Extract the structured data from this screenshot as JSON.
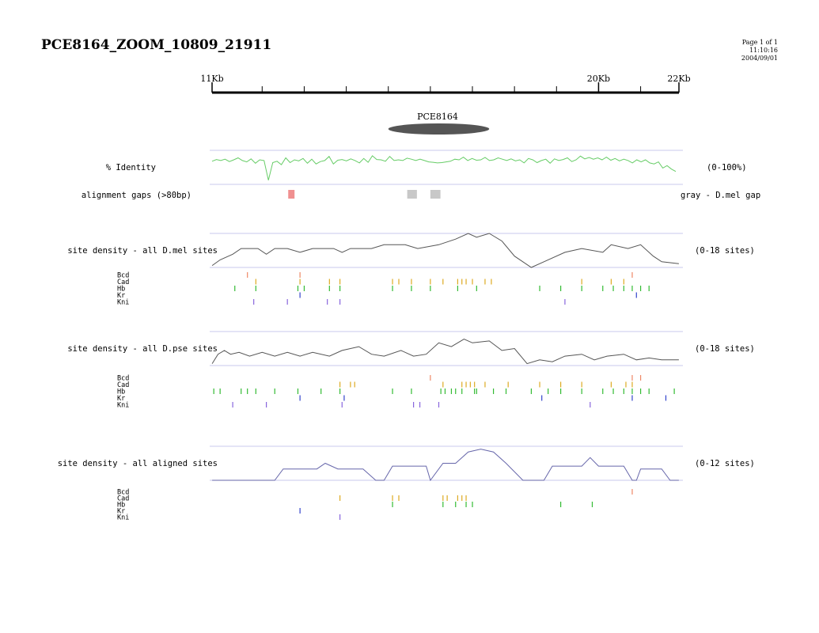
{
  "header": {
    "title": "PCE8164_ZOOM_10809_21911",
    "page": "Page 1 of 1",
    "time": "11:10:16",
    "date": "2004/09/01"
  },
  "ruler": {
    "range_kb": [
      10.809,
      21.911
    ],
    "labels": [
      {
        "text": "11Kb",
        "value": 10.809
      },
      {
        "text": "20Kb",
        "value": 20.0
      },
      {
        "text": "22Kb",
        "value": 21.911
      }
    ],
    "tick_values": [
      10.809,
      12.0,
      13.0,
      14.0,
      15.0,
      16.0,
      17.0,
      18.0,
      19.0,
      20.0,
      21.0,
      21.911
    ]
  },
  "element": {
    "name": "PCE8164",
    "start": 15.0,
    "end": 17.4
  },
  "identity": {
    "label": "% Identity",
    "range_label": "(0-100%)",
    "color": "#66cc66",
    "min": 0,
    "max": 100,
    "values": [
      68,
      73,
      70,
      74,
      67,
      72,
      78,
      70,
      66,
      75,
      62,
      72,
      70,
      12,
      64,
      68,
      58,
      78,
      64,
      72,
      69,
      76,
      62,
      74,
      60,
      67,
      70,
      82,
      60,
      71,
      73,
      69,
      75,
      70,
      63,
      76,
      65,
      84,
      73,
      72,
      68,
      82,
      70,
      72,
      70,
      77,
      74,
      70,
      74,
      70,
      66,
      65,
      63,
      64,
      66,
      68,
      74,
      72,
      80,
      70,
      76,
      71,
      72,
      79,
      70,
      72,
      78,
      74,
      70,
      75,
      69,
      72,
      63,
      76,
      72,
      64,
      70,
      74,
      62,
      75,
      70,
      73,
      78,
      67,
      72,
      83,
      75,
      79,
      74,
      78,
      72,
      80,
      71,
      76,
      69,
      74,
      70,
      63,
      72,
      66,
      72,
      63,
      60,
      66,
      48,
      55,
      45,
      38
    ]
  },
  "gaps": {
    "label": "alignment gaps (>80bp)",
    "legend": "gray - D.mel gap",
    "colors": {
      "dmel": "#c8c8c8",
      "dpse": "#f09090"
    },
    "items": [
      {
        "type": "dpse",
        "start": 12.62,
        "end": 12.77
      },
      {
        "type": "dmel",
        "start": 15.45,
        "end": 15.68
      },
      {
        "type": "dmel",
        "start": 16.0,
        "end": 16.24
      }
    ]
  },
  "tracks": [
    {
      "title": "site density - all D.mel sites",
      "range_label": "(0-18 sites)",
      "max": 18,
      "density": [
        [
          10.81,
          1
        ],
        [
          11.0,
          4
        ],
        [
          11.3,
          7
        ],
        [
          11.5,
          10
        ],
        [
          11.9,
          10
        ],
        [
          12.1,
          7
        ],
        [
          12.3,
          10
        ],
        [
          12.6,
          10
        ],
        [
          12.9,
          8
        ],
        [
          13.2,
          10
        ],
        [
          13.7,
          10
        ],
        [
          13.9,
          8
        ],
        [
          14.1,
          10
        ],
        [
          14.6,
          10
        ],
        [
          14.9,
          12
        ],
        [
          15.4,
          12
        ],
        [
          15.7,
          10
        ],
        [
          16.2,
          12
        ],
        [
          16.6,
          15
        ],
        [
          16.9,
          18
        ],
        [
          17.1,
          16
        ],
        [
          17.4,
          18
        ],
        [
          17.7,
          14
        ],
        [
          18.0,
          6
        ],
        [
          18.4,
          0
        ],
        [
          18.7,
          3
        ],
        [
          19.2,
          8
        ],
        [
          19.6,
          10
        ],
        [
          20.1,
          8
        ],
        [
          20.3,
          12
        ],
        [
          20.7,
          10
        ],
        [
          21.0,
          12
        ],
        [
          21.3,
          6
        ],
        [
          21.5,
          3
        ],
        [
          21.91,
          2
        ]
      ],
      "factors": [
        {
          "name": "Bcd",
          "positions": [
            11.65,
            12.9,
            20.8
          ],
          "color": "#ee8866"
        },
        {
          "name": "Cad",
          "positions": [
            11.85,
            12.9,
            13.6,
            13.85,
            15.1,
            15.25,
            15.55,
            16.0,
            16.3,
            16.65,
            16.75,
            16.85,
            17.0,
            17.3,
            17.45,
            19.6,
            20.3,
            20.6
          ],
          "color": "#ddaa22"
        },
        {
          "name": "Hb",
          "positions": [
            11.35,
            11.85,
            12.85,
            13.0,
            13.6,
            13.85,
            15.1,
            15.55,
            16.0,
            16.65,
            17.1,
            18.6,
            19.1,
            19.6,
            20.1,
            20.35,
            20.6,
            20.8,
            21.0,
            21.2
          ],
          "color": "#33bb33"
        },
        {
          "name": "Kr",
          "positions": [
            12.9,
            20.9
          ],
          "color": "#3344cc"
        },
        {
          "name": "Kni",
          "positions": [
            11.8,
            12.6,
            13.55,
            13.85,
            19.2
          ],
          "color": "#8866dd"
        }
      ]
    },
    {
      "title": "site density - all D.pse sites",
      "range_label": "(0-18 sites)",
      "max": 18,
      "density": [
        [
          10.81,
          1
        ],
        [
          10.95,
          6
        ],
        [
          11.1,
          8
        ],
        [
          11.25,
          6
        ],
        [
          11.45,
          7
        ],
        [
          11.7,
          5
        ],
        [
          12.0,
          7
        ],
        [
          12.3,
          5
        ],
        [
          12.6,
          7
        ],
        [
          12.9,
          5
        ],
        [
          13.2,
          7
        ],
        [
          13.6,
          5
        ],
        [
          13.9,
          8
        ],
        [
          14.3,
          10
        ],
        [
          14.6,
          6
        ],
        [
          14.9,
          5
        ],
        [
          15.3,
          8
        ],
        [
          15.6,
          5
        ],
        [
          15.9,
          6
        ],
        [
          16.2,
          12
        ],
        [
          16.5,
          10
        ],
        [
          16.8,
          14
        ],
        [
          17.0,
          12
        ],
        [
          17.4,
          13
        ],
        [
          17.7,
          8
        ],
        [
          18.0,
          9
        ],
        [
          18.3,
          1
        ],
        [
          18.6,
          3
        ],
        [
          18.9,
          2
        ],
        [
          19.2,
          5
        ],
        [
          19.6,
          6
        ],
        [
          19.9,
          3
        ],
        [
          20.2,
          5
        ],
        [
          20.6,
          6
        ],
        [
          20.9,
          3
        ],
        [
          21.2,
          4
        ],
        [
          21.5,
          3
        ],
        [
          21.91,
          3
        ]
      ],
      "factors": [
        {
          "name": "Bcd",
          "positions": [
            16.0,
            20.8,
            21.0
          ],
          "color": "#ee8866"
        },
        {
          "name": "Cad",
          "positions": [
            13.85,
            14.1,
            14.2,
            16.3,
            16.75,
            16.85,
            16.95,
            17.05,
            17.3,
            17.85,
            18.6,
            19.1,
            19.6,
            20.3,
            20.65,
            20.8
          ],
          "color": "#ddaa22"
        },
        {
          "name": "Hb",
          "positions": [
            10.85,
            11.0,
            11.5,
            11.65,
            11.85,
            12.3,
            12.85,
            13.4,
            13.85,
            15.1,
            15.55,
            16.25,
            16.35,
            16.5,
            16.6,
            16.75,
            17.05,
            17.1,
            17.5,
            17.8,
            18.4,
            18.8,
            19.1,
            19.6,
            20.1,
            20.35,
            20.6,
            20.8,
            21.0,
            21.2,
            21.8
          ],
          "color": "#33bb33"
        },
        {
          "name": "Kr",
          "positions": [
            12.9,
            13.95,
            18.65,
            20.8,
            21.6
          ],
          "color": "#3344cc"
        },
        {
          "name": "Kni",
          "positions": [
            11.3,
            12.1,
            13.9,
            15.6,
            15.75,
            16.2,
            19.8
          ],
          "color": "#8866dd"
        }
      ]
    },
    {
      "title": "site density - all aligned sites",
      "range_label": "(0-12 sites)",
      "max": 12,
      "density": [
        [
          10.81,
          0
        ],
        [
          12.3,
          0
        ],
        [
          12.5,
          4
        ],
        [
          13.3,
          4
        ],
        [
          13.5,
          6
        ],
        [
          13.8,
          4
        ],
        [
          14.4,
          4
        ],
        [
          14.7,
          0
        ],
        [
          14.9,
          0
        ],
        [
          15.1,
          5
        ],
        [
          15.9,
          5
        ],
        [
          16.0,
          0
        ],
        [
          16.3,
          6
        ],
        [
          16.6,
          6
        ],
        [
          16.9,
          10
        ],
        [
          17.2,
          11
        ],
        [
          17.5,
          10
        ],
        [
          17.8,
          6
        ],
        [
          18.2,
          0
        ],
        [
          18.7,
          0
        ],
        [
          18.9,
          5
        ],
        [
          19.4,
          5
        ],
        [
          19.6,
          5
        ],
        [
          19.8,
          8
        ],
        [
          20.0,
          5
        ],
        [
          20.6,
          5
        ],
        [
          20.8,
          0
        ],
        [
          20.9,
          0
        ],
        [
          21.0,
          4
        ],
        [
          21.5,
          4
        ],
        [
          21.7,
          0
        ],
        [
          21.91,
          0
        ]
      ],
      "factors": [
        {
          "name": "Bcd",
          "positions": [
            20.8
          ],
          "color": "#ee8866"
        },
        {
          "name": "Cad",
          "positions": [
            13.85,
            15.1,
            15.25,
            16.3,
            16.4,
            16.65,
            16.75,
            16.85
          ],
          "color": "#ddaa22"
        },
        {
          "name": "Hb",
          "positions": [
            15.1,
            16.3,
            16.6,
            16.85,
            17.0,
            19.1,
            19.85
          ],
          "color": "#33bb33"
        },
        {
          "name": "Kr",
          "positions": [
            12.9
          ],
          "color": "#3344cc"
        },
        {
          "name": "Kni",
          "positions": [
            13.85
          ],
          "color": "#8866dd"
        }
      ]
    }
  ]
}
